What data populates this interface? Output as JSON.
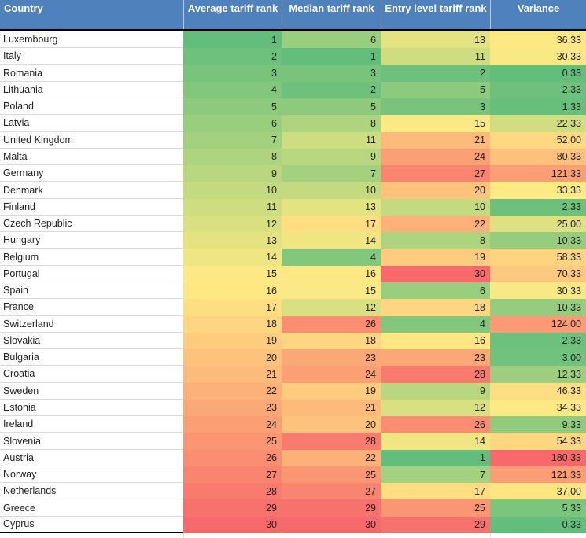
{
  "chart_data": {
    "type": "table",
    "columns": [
      "Country",
      "Average tariff rank",
      "Median tariff rank",
      "Entry level tariff rank",
      "Variance"
    ],
    "rows": [
      [
        "Luxembourg",
        1,
        6,
        13,
        36.33
      ],
      [
        "Italy",
        2,
        1,
        11,
        30.33
      ],
      [
        "Romania",
        3,
        3,
        2,
        0.33
      ],
      [
        "Lithuania",
        4,
        2,
        5,
        2.33
      ],
      [
        "Poland",
        5,
        5,
        3,
        1.33
      ],
      [
        "Latvia",
        6,
        8,
        15,
        22.33
      ],
      [
        "United Kingdom",
        7,
        11,
        21,
        52.0
      ],
      [
        "Malta",
        8,
        9,
        24,
        80.33
      ],
      [
        "Germany",
        9,
        7,
        27,
        121.33
      ],
      [
        "Denmark",
        10,
        10,
        20,
        33.33
      ],
      [
        "Finland",
        11,
        13,
        10,
        2.33
      ],
      [
        "Czech Republic",
        12,
        17,
        22,
        25.0
      ],
      [
        "Hungary",
        13,
        14,
        8,
        10.33
      ],
      [
        "Belgium",
        14,
        4,
        19,
        58.33
      ],
      [
        "Portugal",
        15,
        16,
        30,
        70.33
      ],
      [
        "Spain",
        16,
        15,
        6,
        30.33
      ],
      [
        "France",
        17,
        12,
        18,
        10.33
      ],
      [
        "Switzerland",
        18,
        26,
        4,
        124.0
      ],
      [
        "Slovakia",
        19,
        18,
        16,
        2.33
      ],
      [
        "Bulgaria",
        20,
        23,
        23,
        3.0
      ],
      [
        "Croatia",
        21,
        24,
        28,
        12.33
      ],
      [
        "Sweden",
        22,
        19,
        9,
        46.33
      ],
      [
        "Estonia",
        23,
        21,
        12,
        34.33
      ],
      [
        "Ireland",
        24,
        20,
        26,
        9.33
      ],
      [
        "Slovenia",
        25,
        28,
        14,
        54.33
      ],
      [
        "Austria",
        26,
        22,
        1,
        180.33
      ],
      [
        "Norway",
        27,
        25,
        7,
        121.33
      ],
      [
        "Netherlands",
        28,
        27,
        17,
        37.0
      ],
      [
        "Greece",
        29,
        29,
        25,
        5.33
      ],
      [
        "Cyprus",
        30,
        30,
        29,
        0.33
      ]
    ]
  },
  "colors": {
    "header_bg": "#4F81BD",
    "header_text": "#FFFFFF",
    "scale_min_green": "#63BE7B",
    "scale_mid_yellow": "#FFEB84",
    "scale_max_red": "#F8696B",
    "row_divider": "#D9D9D9",
    "table_border": "#000000",
    "cell_text": "#1F1F1F"
  },
  "formatting": {
    "rank_scale": {
      "min": 1,
      "mid": 15.5,
      "max": 30
    },
    "variance_scale": {
      "min": 0.33,
      "mid": 31.83,
      "max": 180.33
    },
    "variance_decimals": 2
  }
}
